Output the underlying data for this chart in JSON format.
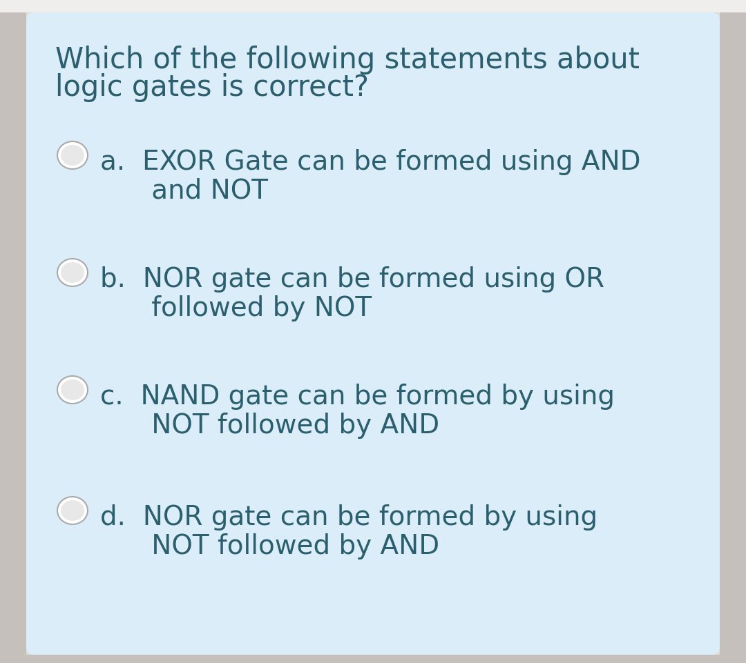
{
  "background_outer": "#e0dcd8",
  "background_card": "#daedf8",
  "background_top_bar": "#f0eeec",
  "text_color": "#2b5f6d",
  "question_line1": "Which of the following statements about",
  "question_line2": "logic gates is correct?",
  "options_line1": [
    "a.  EXOR Gate can be formed using AND",
    "b.  NOR gate can be formed using OR",
    "c.  NAND gate can be formed by using",
    "d.  NOR gate can be formed by using"
  ],
  "options_line2": [
    "      and NOT",
    "      followed by NOT",
    "      NOT followed by AND",
    "      NOT followed by AND"
  ],
  "question_fontsize": 30,
  "option_fontsize": 28,
  "radio_edge_color": "#aaaaaa",
  "radio_face_color": "#e8e8e8",
  "radio_shadow_color": "#c0c0c0",
  "figsize": [
    10.8,
    9.61
  ],
  "dpi": 100
}
